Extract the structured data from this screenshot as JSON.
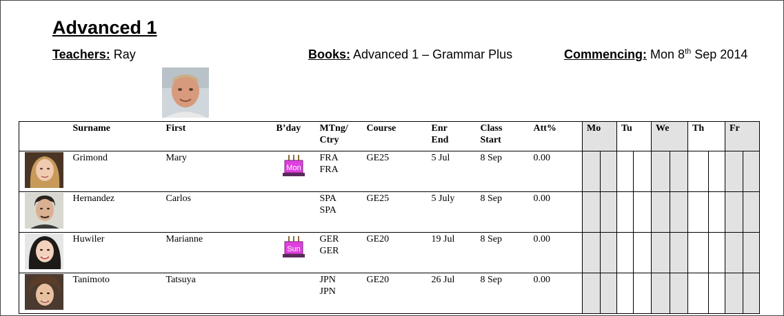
{
  "header": {
    "title": "Advanced 1",
    "teachers_label": "Teachers:",
    "teachers_value": "Ray",
    "books_label": "Books:",
    "books_value": "Advanced 1 – Grammar Plus",
    "commencing_label": "Commencing:",
    "commencing_day": "Mon 8",
    "commencing_sup": "th",
    "commencing_rest": "Sep 2014"
  },
  "table": {
    "columns": {
      "surname": "Surname",
      "first": "First",
      "bday": "B’day",
      "mtng": "MTng/\nCtry",
      "course": "Course",
      "enr_end": "Enr\nEnd",
      "class_start": "Class\nStart",
      "att": "Att%",
      "days": [
        "Mo",
        "Tu",
        "We",
        "Th",
        "Fr"
      ]
    },
    "rows": [
      {
        "surname": "Grimond",
        "first": "Mary",
        "bday_cake": "Mon",
        "mtng": "FRA\nFRA",
        "course": "GE25",
        "enr_end": "5 Jul",
        "class_start": "8 Sep",
        "att": "0.00"
      },
      {
        "surname": "Hernandez",
        "first": "Carlos",
        "bday_cake": "",
        "mtng": "SPA\nSPA",
        "course": "GE25",
        "enr_end": "5 July",
        "class_start": "8 Sep",
        "att": "0.00"
      },
      {
        "surname": "Huwiler",
        "first": "Marianne",
        "bday_cake": "Sun",
        "mtng": "GER\nGER",
        "course": "GE20",
        "enr_end": "19 Jul",
        "class_start": "8 Sep",
        "att": "0.00"
      },
      {
        "surname": "Tanimoto",
        "first": "Tatsuya",
        "bday_cake": "",
        "mtng": "JPN\nJPN",
        "course": "GE20",
        "enr_end": "26 Jul",
        "class_start": "8 Sep",
        "att": "0.00"
      }
    ]
  },
  "colors": {
    "day_shade": "#e2e2e2",
    "cake_pink": "#e040e0",
    "cake_base": "#5a2a5a"
  }
}
